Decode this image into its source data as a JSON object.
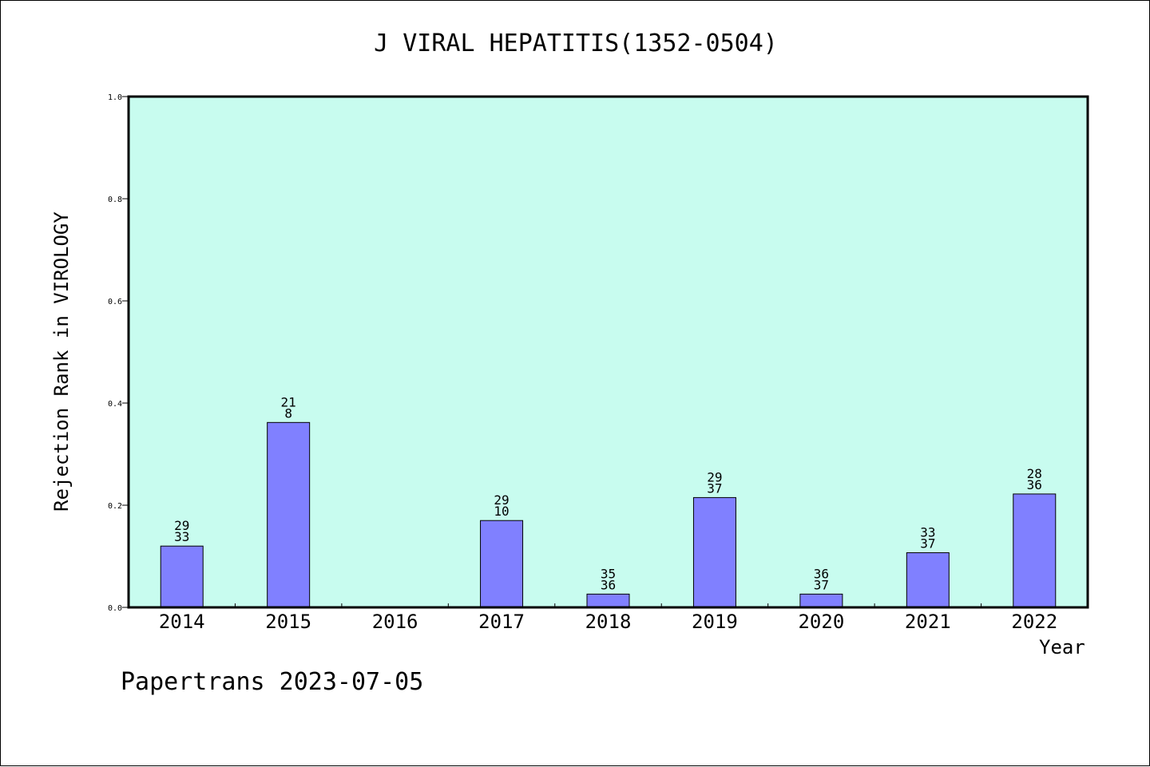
{
  "chart_data": {
    "type": "bar",
    "title": "J VIRAL HEPATITIS(1352-0504)",
    "xlabel": "Year",
    "ylabel": "Rejection Rank in VIROLOGY",
    "categories": [
      "2014",
      "2015",
      "2016",
      "2017",
      "2018",
      "2019",
      "2020",
      "2021",
      "2022"
    ],
    "values": [
      0.12,
      0.362,
      null,
      0.17,
      0.026,
      0.215,
      0.026,
      0.107,
      0.222
    ],
    "data_labels": [
      [
        "29",
        "33"
      ],
      [
        "21",
        "8"
      ],
      [],
      [
        "29",
        "10"
      ],
      [
        "35",
        "36"
      ],
      [
        "29",
        "37"
      ],
      [
        "36",
        "37"
      ],
      [
        "33",
        "37"
      ],
      [
        "28",
        "36"
      ]
    ],
    "ylim": [
      0,
      1.0
    ],
    "yticks": [
      "0.0",
      "0.2",
      "0.4",
      "0.6",
      "0.8",
      "1.0"
    ],
    "grid": false,
    "colors": {
      "plot_background": "#c8fcef",
      "bar_fill": "#8080ff",
      "bar_stroke": "#000000"
    }
  },
  "footer": "Papertrans 2023-07-05"
}
